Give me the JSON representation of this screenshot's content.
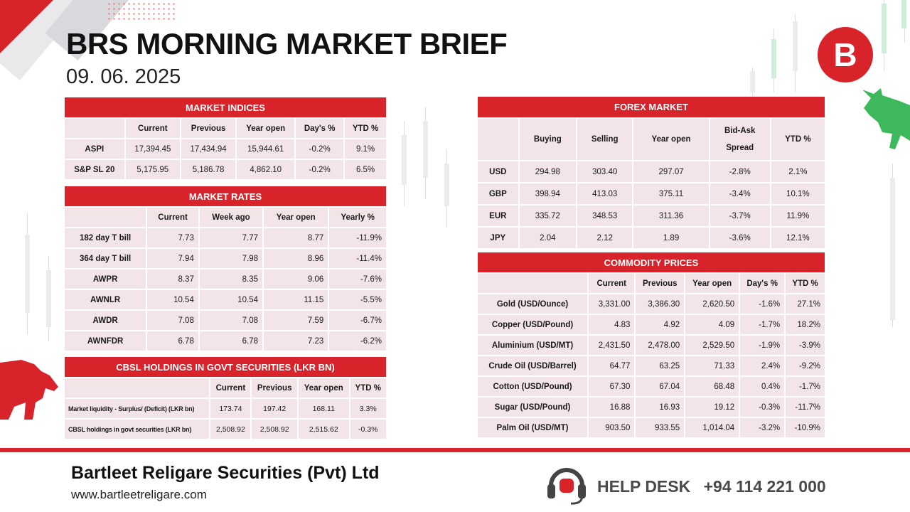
{
  "header": {
    "title": "BRS MORNING MARKET BRIEF",
    "date": "09. 06. 2025",
    "logo_letter": "B"
  },
  "colors": {
    "accent": "#d8232a",
    "cell": "#f3e4e7"
  },
  "market_indices": {
    "title": "MARKET INDICES",
    "columns": [
      "",
      "Current",
      "Previous",
      "Year open",
      "Day's %",
      "YTD %"
    ],
    "rows": [
      [
        "ASPI",
        "17,394.45",
        "17,434.94",
        "15,944.61",
        "-0.2%",
        "9.1%"
      ],
      [
        "S&P SL 20",
        "5,175.95",
        "5,186.78",
        "4,862.10",
        "-0.2%",
        "6.5%"
      ]
    ]
  },
  "market_rates": {
    "title": "MARKET RATES",
    "columns": [
      "",
      "Current",
      "Week ago",
      "Year open",
      "Yearly %"
    ],
    "rows": [
      [
        "182 day T bill",
        "7.73",
        "7.77",
        "8.77",
        "-11.9%"
      ],
      [
        "364 day T bill",
        "7.94",
        "7.98",
        "8.96",
        "-11.4%"
      ],
      [
        "AWPR",
        "8.37",
        "8.35",
        "9.06",
        "-7.6%"
      ],
      [
        "AWNLR",
        "10.54",
        "10.54",
        "11.15",
        "-5.5%"
      ],
      [
        "AWDR",
        "7.08",
        "7.08",
        "7.59",
        "-6.7%"
      ],
      [
        "AWNFDR",
        "6.78",
        "6.78",
        "7.23",
        "-6.2%"
      ]
    ]
  },
  "cbsl": {
    "title": "CBSL HOLDINGS IN GOVT SECURITIES (LKR BN)",
    "columns": [
      "",
      "Current",
      "Previous",
      "Year open",
      "YTD %"
    ],
    "rows": [
      [
        "Market liquidity - Surplus/ (Deficit) (LKR bn)",
        "173.74",
        "197.42",
        "168.11",
        "3.3%"
      ],
      [
        "CBSL holdings in govt securities (LKR bn)",
        "2,508.92",
        "2,508.92",
        "2,515.62",
        "-0.3%"
      ]
    ]
  },
  "forex": {
    "title": "FOREX MARKET",
    "columns": [
      "",
      "Buying",
      "Selling",
      "Year open",
      "Bid-Ask Spread",
      "YTD %"
    ],
    "rows": [
      [
        "USD",
        "294.98",
        "303.40",
        "297.07",
        "-2.8%",
        "2.1%"
      ],
      [
        "GBP",
        "398.94",
        "413.03",
        "375.11",
        "-3.4%",
        "10.1%"
      ],
      [
        "EUR",
        "335.72",
        "348.53",
        "311.36",
        "-3.7%",
        "11.9%"
      ],
      [
        "JPY",
        "2.04",
        "2.12",
        "1.89",
        "-3.6%",
        "12.1%"
      ]
    ]
  },
  "commodities": {
    "title": "COMMODITY PRICES",
    "columns": [
      "",
      "Current",
      "Previous",
      "Year open",
      "Day's %",
      "YTD %"
    ],
    "rows": [
      [
        "Gold (USD/Ounce)",
        "3,331.00",
        "3,386.30",
        "2,620.50",
        "-1.6%",
        "27.1%"
      ],
      [
        "Copper (USD/Pound)",
        "4.83",
        "4.92",
        "4.09",
        "-1.7%",
        "18.2%"
      ],
      [
        "Aluminium (USD/MT)",
        "2,431.50",
        "2,478.00",
        "2,529.50",
        "-1.9%",
        "-3.9%"
      ],
      [
        "Crude Oil (USD/Barrel)",
        "64.77",
        "63.25",
        "71.33",
        "2.4%",
        "-9.2%"
      ],
      [
        "Cotton (USD/Pound)",
        "67.30",
        "67.04",
        "68.48",
        "0.4%",
        "-1.7%"
      ],
      [
        "Sugar (USD/Pound)",
        "16.88",
        "16.93",
        "19.12",
        "-0.3%",
        "-11.7%"
      ],
      [
        "Palm Oil (USD/MT)",
        "903.50",
        "933.55",
        "1,014.04",
        "-3.2%",
        "-10.9%"
      ]
    ]
  },
  "footer": {
    "company": "Bartleet Religare Securities (Pvt) Ltd",
    "website": "www.bartleetreligare.com",
    "helpdesk_label": "HELP DESK",
    "helpdesk_phone": "+94 114 221 000",
    "helpdesk_icon": "headset-icon"
  }
}
